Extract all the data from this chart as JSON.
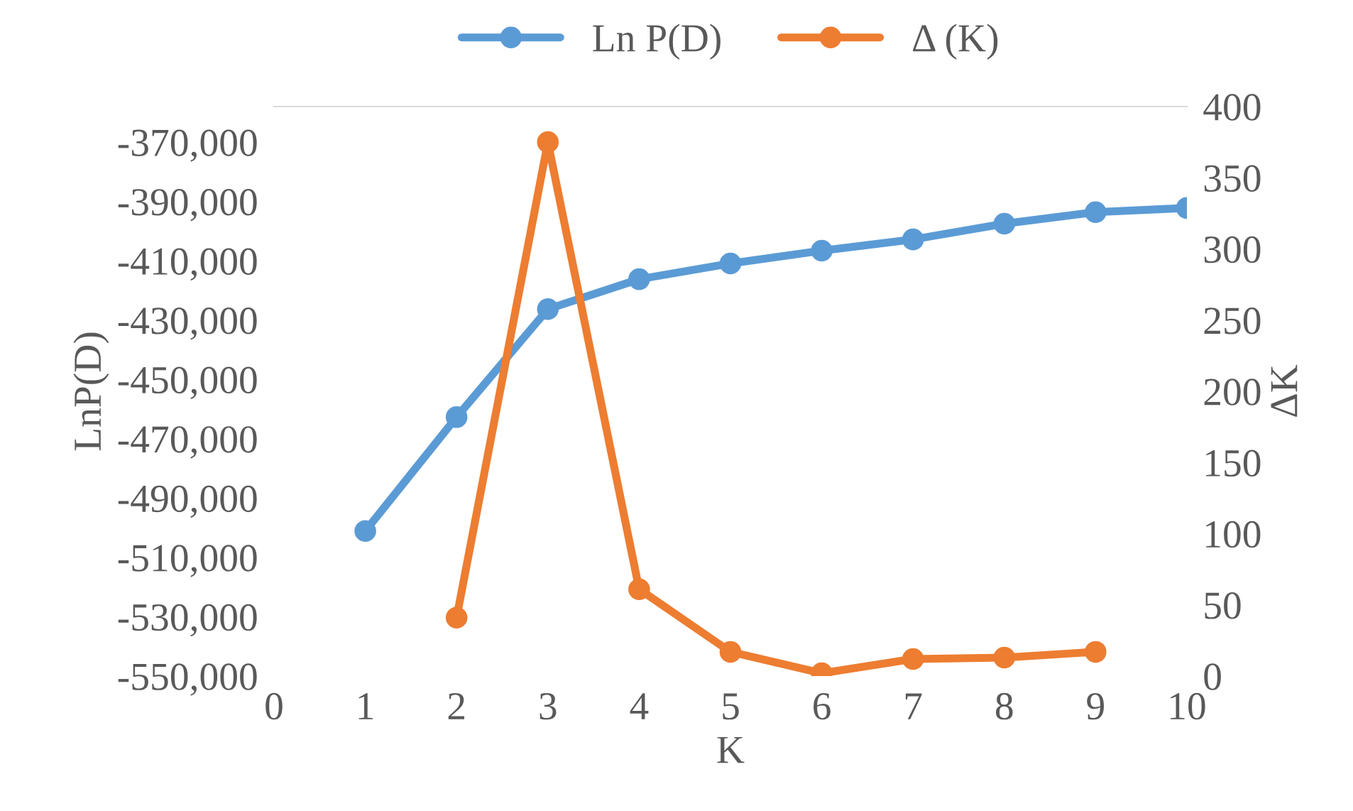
{
  "chart_data": {
    "type": "line",
    "xlabel": "K",
    "ylabel": "LnP(D)",
    "y2label": "ΔK",
    "x": [
      1,
      2,
      3,
      4,
      5,
      6,
      7,
      8,
      9,
      10
    ],
    "xlim": [
      0,
      10
    ],
    "xticks": [
      0,
      1,
      2,
      3,
      4,
      5,
      6,
      7,
      8,
      9,
      10
    ],
    "ylim": [
      -550000,
      -358000
    ],
    "yticks": [
      {
        "value": -550000,
        "label": "-550,000"
      },
      {
        "value": -530000,
        "label": "-530,000"
      },
      {
        "value": -510000,
        "label": "-510,000"
      },
      {
        "value": -490000,
        "label": "-490,000"
      },
      {
        "value": -470000,
        "label": "-470,000"
      },
      {
        "value": -450000,
        "label": "-450,000"
      },
      {
        "value": -430000,
        "label": "-430,000"
      },
      {
        "value": -410000,
        "label": "-410,000"
      },
      {
        "value": -390000,
        "label": "-390,000"
      },
      {
        "value": -370000,
        "label": "-370,000"
      }
    ],
    "y2lim": [
      0,
      400
    ],
    "y2ticks": [
      0,
      50,
      100,
      150,
      200,
      250,
      300,
      350,
      400
    ],
    "legend": "top",
    "marker": "circle",
    "line_style": "solid",
    "grid": false,
    "series": [
      {
        "name": "Ln P(D)",
        "color": "#5b9bd5",
        "values": [
          -501100,
          -462700,
          -426300,
          -416200,
          -410900,
          -406600,
          -402800,
          -397500,
          -393600,
          -392200
        ]
      },
      {
        "name": "Δ (K)",
        "color": "#ed7d31",
        "axis": "y2",
        "values": [
          null,
          41,
          375,
          61,
          17,
          2,
          12,
          13,
          17,
          null
        ]
      }
    ]
  }
}
